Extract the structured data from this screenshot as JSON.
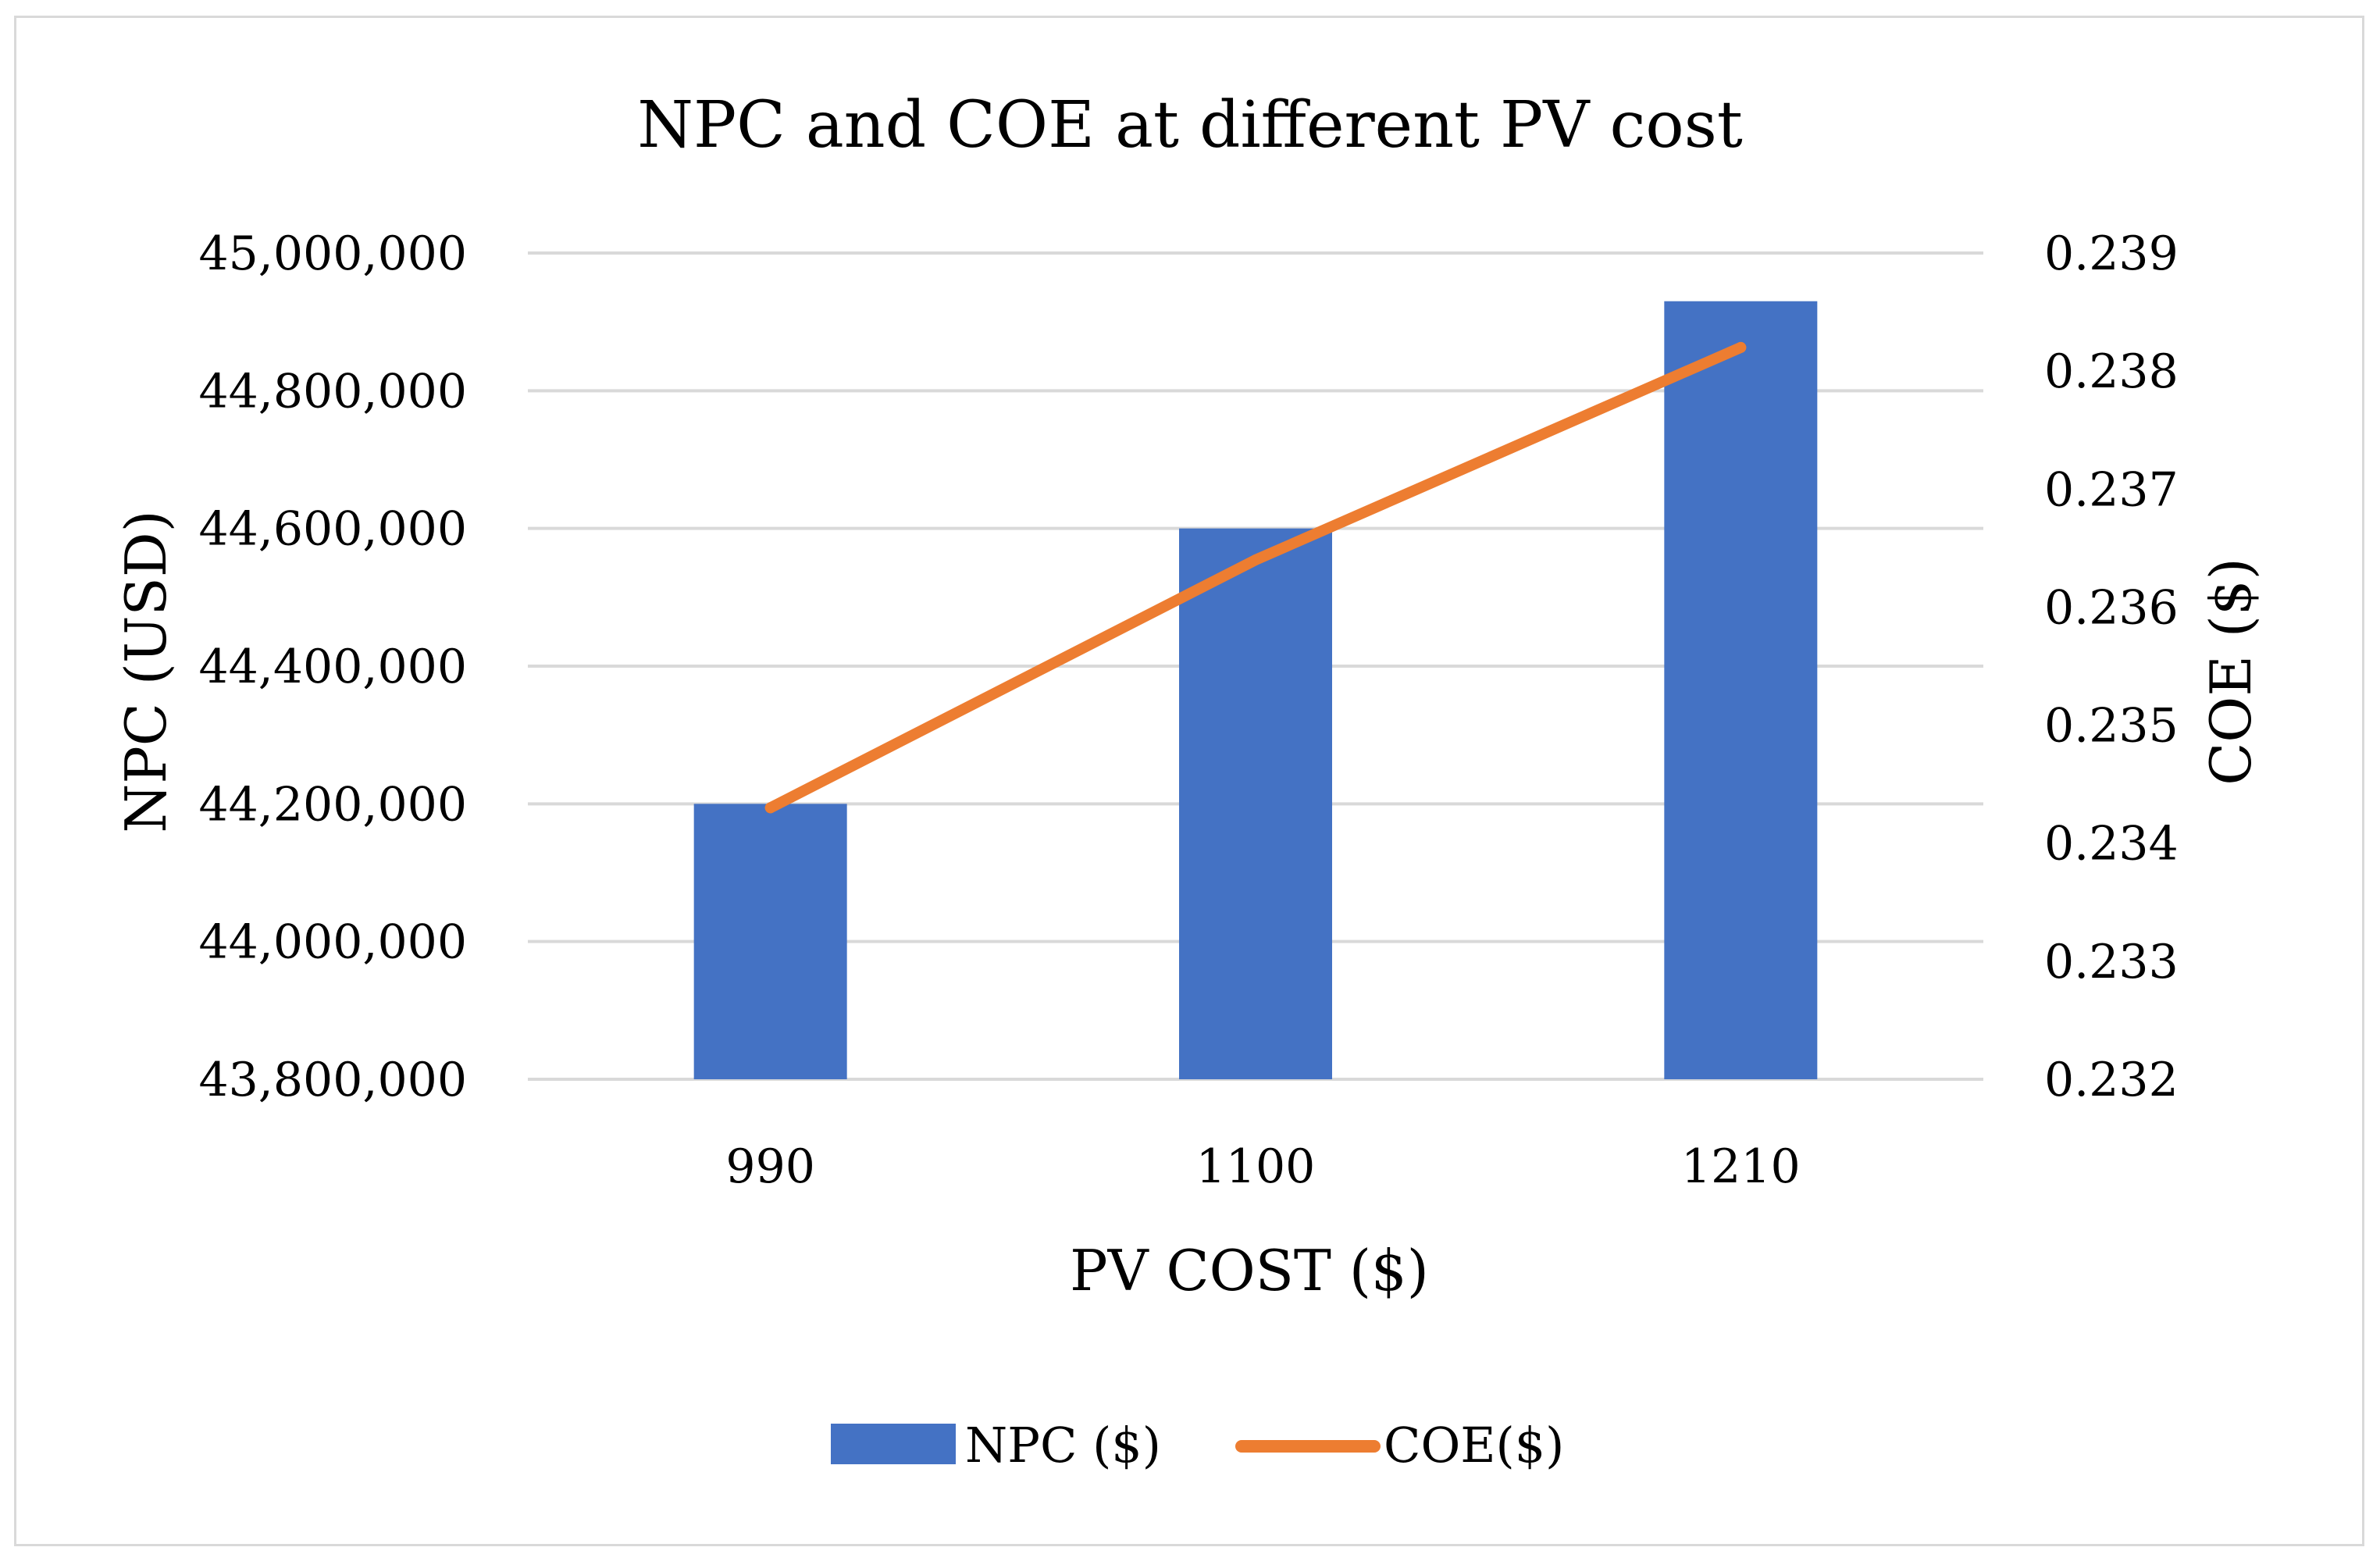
{
  "chart_data": {
    "type": "bar",
    "title": "NPC and COE at different PV cost",
    "categories": [
      "990",
      "1100",
      "1210"
    ],
    "xlabel": "PV COST ($)",
    "ylabel": "NPC  (USD)",
    "y2label": "COE ($)",
    "ylim": [
      43800000,
      45000000
    ],
    "y2lim": [
      0.232,
      0.239
    ],
    "y_ticks": [
      "43,800,000",
      "44,000,000",
      "44,200,000",
      "44,400,000",
      "44,600,000",
      "44,800,000",
      "45,000,000"
    ],
    "y2_ticks": [
      "0.232",
      "0.233",
      "0.234",
      "0.235",
      "0.236",
      "0.237",
      "0.238",
      "0.239"
    ],
    "grid": true,
    "legend_position": "bottom",
    "series": [
      {
        "name": "NPC ($)",
        "type": "bar",
        "axis": "left",
        "color": "#4472C4",
        "values": [
          44200000,
          44600000,
          44930000
        ]
      },
      {
        "name": "COE($)",
        "type": "line",
        "axis": "right",
        "color": "#ED7D31",
        "values": [
          0.2343,
          0.2364,
          0.2382
        ]
      }
    ]
  }
}
